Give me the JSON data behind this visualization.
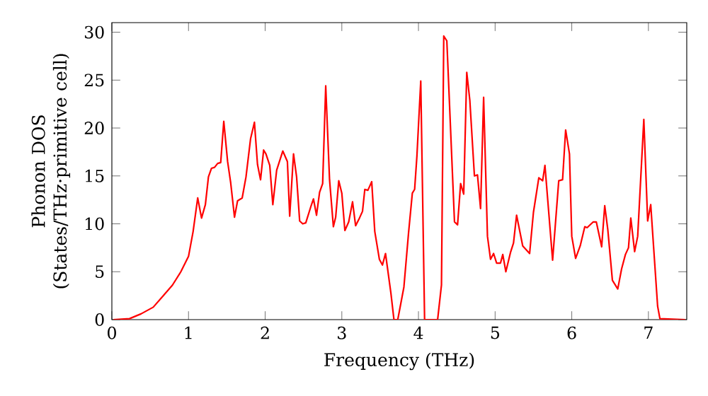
{
  "chart_data": {
    "type": "line",
    "xlabel": "Frequency (THz)",
    "ylabel": "Phonon DOS (States/THz·primitive cell)",
    "xlim": [
      0,
      7.5
    ],
    "ylim": [
      0,
      31
    ],
    "xticks": [
      0,
      1,
      2,
      3,
      4,
      5,
      6,
      7
    ],
    "yticks": [
      0,
      5,
      10,
      15,
      20,
      25,
      30
    ],
    "grid": false,
    "marker": "none",
    "line_style": "solid",
    "series": [
      {
        "color": "#ff0000",
        "x": [
          0.02,
          0.23,
          0.38,
          0.54,
          0.66,
          0.79,
          0.9,
          1.0,
          1.06,
          1.12,
          1.17,
          1.22,
          1.26,
          1.3,
          1.34,
          1.38,
          1.42,
          1.46,
          1.51,
          1.55,
          1.6,
          1.64,
          1.7,
          1.75,
          1.81,
          1.86,
          1.9,
          1.94,
          1.98,
          2.01,
          2.06,
          2.1,
          2.15,
          2.23,
          2.29,
          2.32,
          2.37,
          2.41,
          2.45,
          2.49,
          2.53,
          2.6,
          2.63,
          2.67,
          2.71,
          2.75,
          2.79,
          2.84,
          2.89,
          2.92,
          2.96,
          3.0,
          3.04,
          3.09,
          3.14,
          3.18,
          3.23,
          3.27,
          3.3,
          3.34,
          3.39,
          3.43,
          3.49,
          3.53,
          3.57,
          3.64,
          3.68,
          3.73,
          3.81,
          3.87,
          3.92,
          3.95,
          3.98,
          4.03,
          4.08,
          4.25,
          4.3,
          4.33,
          4.37,
          4.47,
          4.51,
          4.55,
          4.59,
          4.63,
          4.67,
          4.73,
          4.77,
          4.81,
          4.85,
          4.9,
          4.94,
          4.98,
          5.02,
          5.07,
          5.1,
          5.14,
          5.2,
          5.24,
          5.28,
          5.36,
          5.45,
          5.5,
          5.57,
          5.62,
          5.65,
          5.75,
          5.83,
          5.88,
          5.92,
          5.97,
          6.0,
          6.05,
          6.11,
          6.17,
          6.2,
          6.28,
          6.32,
          6.39,
          6.43,
          6.47,
          6.53,
          6.6,
          6.65,
          6.7,
          6.74,
          6.77,
          6.82,
          6.86,
          6.94,
          6.99,
          7.03,
          7.12,
          7.15,
          7.48
        ],
        "values": [
          0,
          0.1,
          0.6,
          1.3,
          2.4,
          3.6,
          5.0,
          6.6,
          9.2,
          12.7,
          10.6,
          12.0,
          14.9,
          15.8,
          15.9,
          16.3,
          16.4,
          20.7,
          16.5,
          14.3,
          10.7,
          12.4,
          12.7,
          14.9,
          18.9,
          20.6,
          16.2,
          14.6,
          17.7,
          17.3,
          16.1,
          12.0,
          15.6,
          17.6,
          16.5,
          10.8,
          17.3,
          14.9,
          10.3,
          10.0,
          10.1,
          11.9,
          12.6,
          10.9,
          13.3,
          14.2,
          24.4,
          14.6,
          9.7,
          10.7,
          14.5,
          13.2,
          9.3,
          10.2,
          12.3,
          9.8,
          10.6,
          11.3,
          13.6,
          13.5,
          14.4,
          9.2,
          6.3,
          5.7,
          6.9,
          2.8,
          0,
          0,
          3.4,
          9.0,
          13.2,
          13.6,
          17.1,
          24.9,
          0,
          0,
          3.6,
          29.6,
          29.1,
          10.2,
          9.9,
          14.2,
          13.1,
          25.8,
          22.9,
          15.0,
          15.1,
          11.6,
          23.2,
          8.7,
          6.3,
          6.9,
          5.9,
          5.9,
          6.8,
          5.0,
          7.0,
          8.0,
          10.9,
          7.7,
          6.9,
          11.2,
          14.8,
          14.5,
          16.1,
          6.2,
          14.5,
          14.6,
          19.8,
          17.3,
          8.7,
          6.4,
          7.7,
          9.7,
          9.6,
          10.2,
          10.2,
          7.6,
          11.9,
          9.4,
          4.1,
          3.2,
          5.3,
          6.8,
          7.5,
          10.6,
          7.1,
          8.7,
          20.9,
          10.3,
          12.0,
          1.4,
          0.1,
          0
        ]
      }
    ]
  }
}
